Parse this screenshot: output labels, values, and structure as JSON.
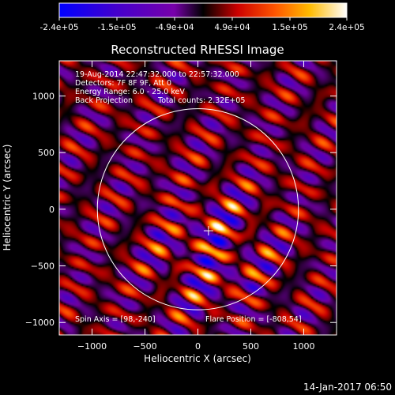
{
  "window_timestamp": "14-Jan-2017 06:50",
  "colorbar": {
    "tick_labels": [
      "-2.4e+05",
      "-1.5e+05",
      "-4.9e+04",
      "4.9e+04",
      "1.5e+05",
      "2.4e+05"
    ],
    "min": -240000,
    "max": 240000
  },
  "chart_data": {
    "type": "heatmap",
    "title": "Reconstructed RHESSI Image",
    "xlabel": "Heliocentric X (arcsec)",
    "ylabel": "Heliocentric Y (arcsec)",
    "xlim": [
      -1310,
      1310
    ],
    "ylim": [
      -1110,
      1310
    ],
    "x_ticks": [
      -1000,
      -500,
      0,
      500,
      1000
    ],
    "y_ticks": [
      -1000,
      -500,
      0,
      500,
      1000
    ],
    "x_tick_labels": [
      "−1000",
      "−500",
      "0",
      "500",
      "1000"
    ],
    "y_tick_labels": [
      "−1000",
      "−500",
      "0",
      "500",
      "1000"
    ],
    "value_range": [
      -240000,
      240000
    ],
    "solar_limb_radius": 950,
    "cross_position": [
      100,
      -190
    ],
    "pattern": "back-projection fringes oriented lower-left to upper-right, peak near (140, -370)",
    "annotations": {
      "time_range": "19-Aug-2014 22:47:32.000 to 22:57:32.000",
      "detectors": "Detectors: 7F 8F 9F, Att 0",
      "energy_range": "Energy Range: 6.0 - 25.0 keV",
      "method": "Back Projection",
      "counts": "Total counts: 2.32E+05",
      "spin_axis": "Spin Axis = [98,-240]",
      "flare_position": "Flare Position = [-808,54]"
    }
  }
}
